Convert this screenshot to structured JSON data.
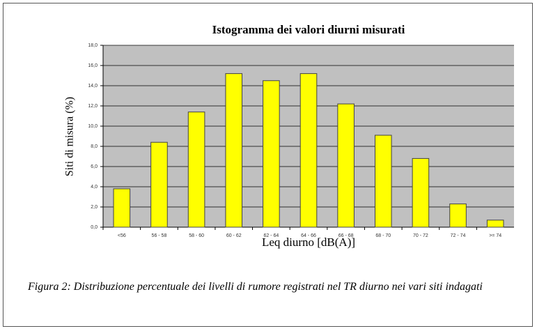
{
  "chart_data": {
    "type": "bar",
    "title": "Istogramma dei valori diurni misurati",
    "x_label": "Leq diurno [dB(A)]",
    "y_label": "Siti di misura (%)",
    "categories": [
      "<56",
      "56 - 58",
      "58 - 60",
      "60 - 62",
      "62 - 64",
      "64 - 66",
      "66 - 68",
      "68 - 70",
      "70 - 72",
      "72 - 74",
      ">= 74"
    ],
    "values": [
      3.8,
      8.4,
      11.4,
      15.2,
      14.5,
      15.2,
      12.2,
      9.1,
      6.8,
      2.3,
      0.7
    ],
    "color": "#ffff00",
    "ylim": [
      0,
      18
    ],
    "yticks": [
      {
        "value": 0,
        "label": "0,0"
      },
      {
        "value": 2,
        "label": "2,0"
      },
      {
        "value": 4,
        "label": "4,0"
      },
      {
        "value": 6,
        "label": "6,0"
      },
      {
        "value": 8,
        "label": "8,0"
      },
      {
        "value": 10,
        "label": "10,0"
      },
      {
        "value": 12,
        "label": "12,0"
      },
      {
        "value": 14,
        "label": "14,0"
      },
      {
        "value": 16,
        "label": "16,0"
      },
      {
        "value": 18,
        "label": "18,0"
      }
    ],
    "grid": true,
    "caption": "Figura 2: Distribuzione percentuale dei livelli di rumore registrati nel TR diurno nei vari siti indagati"
  }
}
